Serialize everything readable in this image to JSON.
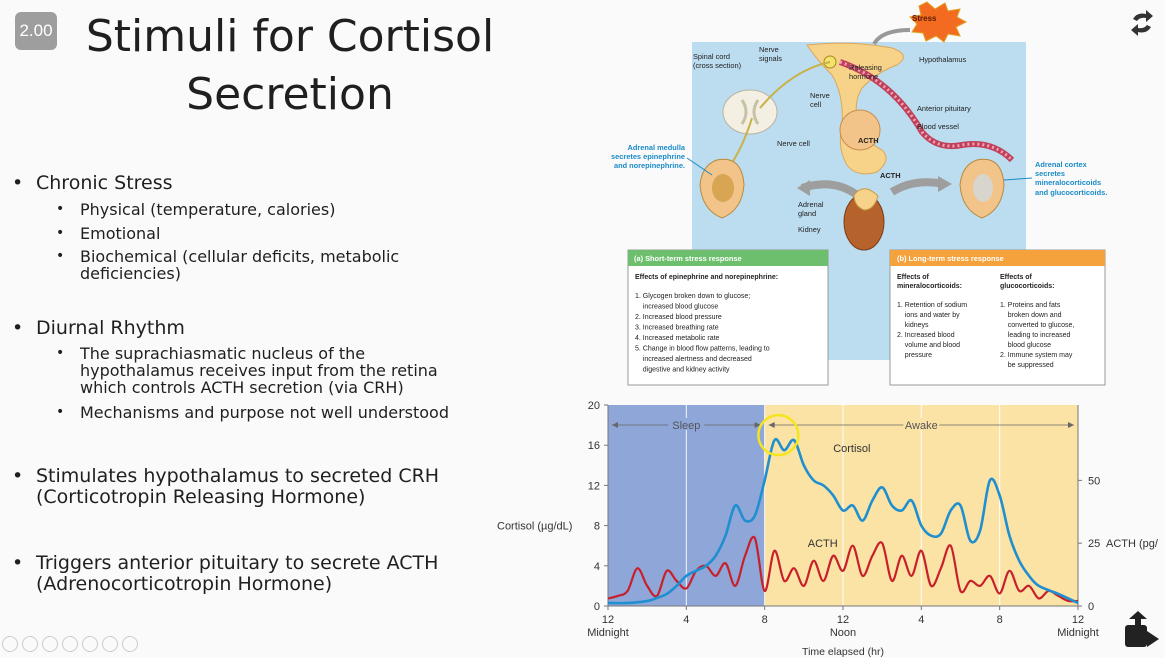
{
  "slide": {
    "speed_badge": "2.00",
    "title_line1": "Stimuli for Cortisol",
    "title_line2": "Secretion",
    "bullets": {
      "chronic": "Chronic Stress",
      "chronic_sub": [
        "Physical (temperature, calories)",
        "Emotional",
        "Biochemical (cellular deficits, metabolic",
        "deficiencies)"
      ],
      "diurnal": "Diurnal Rhythm",
      "diurnal_sub1": [
        "The suprachiasmatic nucleus of the",
        "hypothalamus receives input from the retina",
        "which controls ACTH secretion (via CRH)"
      ],
      "diurnal_sub2": "Mechanisms and purpose not well understood",
      "stim": [
        "Stimulates hypothalamus to secreted CRH",
        "(Corticotropin Releasing Hormone)"
      ],
      "trig": [
        "Triggers anterior pituitary to secrete ACTH",
        "(Adrenocorticotropin Hormone)"
      ]
    }
  },
  "figure": {
    "stress": "Stress",
    "spinal_cord": [
      "Spinal cord",
      "(cross section)"
    ],
    "nerve_signals": [
      "Nerve",
      "signals"
    ],
    "releasing_hormone": [
      "Releasing",
      "hormone"
    ],
    "hypothalamus": "Hypothalamus",
    "nerve_cell_top": [
      "Nerve",
      "cell"
    ],
    "anterior_pituitary": "Anterior pituitary",
    "blood_vessel": "Blood vessel",
    "nerve_cell": "Nerve cell",
    "acth1": "ACTH",
    "acth2": "ACTH",
    "adrenal_medulla": [
      "Adrenal medulla",
      "secretes epinephrine",
      "and norepinephrine."
    ],
    "adrenal_cortex": [
      "Adrenal cortex",
      "secretes",
      "mineralocorticoids",
      "and glucocorticoids."
    ],
    "adrenal_gland": [
      "Adrenal",
      "gland"
    ],
    "kidney": "Kidney",
    "short_term": {
      "header": "(a) Short-term stress response",
      "subtitle": "Effects of epinephrine and norepinephrine:",
      "items": [
        "1. Glycogen broken down to glucose;",
        "    increased blood glucose",
        "2. Increased blood pressure",
        "3. Increased breathing rate",
        "4. Increased metabolic rate",
        "5. Change in blood flow patterns, leading to",
        "    increased alertness and decreased",
        "    digestive and kidney activity"
      ]
    },
    "long_term": {
      "header": "(b) Long-term stress response",
      "col1_title": [
        "Effects of",
        "mineralocorticoids:"
      ],
      "col1_items": [
        "1. Retention of sodium",
        "    ions and water by",
        "    kidneys",
        "2. Increased blood",
        "    volume and blood",
        "    pressure"
      ],
      "col2_title": [
        "Effects of",
        "glucocorticoids:"
      ],
      "col2_items": [
        "1. Proteins and fats",
        "    broken down and",
        "    converted to glucose,",
        "    leading to increased",
        "    blood glucose",
        "2. Immune system may",
        "    be suppressed"
      ]
    }
  },
  "chart_data": {
    "type": "line",
    "x_tick_labels": [
      "12",
      "4",
      "8",
      "12",
      "4",
      "8",
      "12"
    ],
    "x_tick_sub": [
      "Midnight",
      "",
      "",
      "Noon",
      "",
      "",
      "Midnight"
    ],
    "x_ticks_hours": [
      0,
      4,
      8,
      12,
      16,
      20,
      24
    ],
    "xlabel": "Time elapsed (hr)",
    "ylabel": "Cortisol (µg/dL)",
    "y_ticks": [
      0,
      4,
      8,
      12,
      16,
      20
    ],
    "ylim": [
      0,
      20
    ],
    "y2label": "ACTH (pg/",
    "y2_ticks": [
      0,
      25,
      50
    ],
    "y2lim": [
      0,
      80
    ],
    "regions": [
      {
        "name": "Sleep",
        "x": [
          0,
          8
        ],
        "color": "#8fa6d9"
      },
      {
        "name": "Awake",
        "x": [
          8,
          24
        ],
        "color": "#fbe3a6"
      }
    ],
    "series": [
      {
        "name": "Cortisol",
        "color": "#1f8fd0",
        "x": [
          0,
          1,
          2,
          2.5,
          3,
          3.5,
          4,
          4.5,
          5,
          5.5,
          6,
          6.5,
          7,
          7.5,
          8,
          8.5,
          9,
          9.5,
          10,
          10.5,
          11,
          11.5,
          12,
          12.5,
          13,
          13.5,
          14,
          14.5,
          15,
          15.5,
          16,
          16.5,
          17,
          17.5,
          18,
          18.5,
          19,
          19.5,
          20,
          20.5,
          21,
          21.5,
          22,
          23,
          24
        ],
        "y": [
          0.3,
          0.3,
          0.5,
          0.8,
          1.2,
          2,
          3,
          3.5,
          4,
          5,
          7,
          10,
          8.5,
          9,
          12.5,
          16.5,
          15.5,
          16.5,
          14,
          12.5,
          12,
          11,
          9.5,
          10,
          8.5,
          10.5,
          11.8,
          10,
          9.5,
          10.5,
          8,
          7,
          7.2,
          9.5,
          10,
          6.5,
          7.5,
          12.5,
          11,
          7,
          4.5,
          3,
          2,
          1.2,
          0.3
        ]
      },
      {
        "name": "ACTH",
        "color": "#c8202a",
        "x": [
          0,
          0.5,
          1,
          1.5,
          2,
          2.5,
          3,
          3.5,
          4,
          4.5,
          5,
          5.5,
          6,
          6.5,
          7,
          7.5,
          8,
          8.5,
          9,
          9.5,
          10,
          10.5,
          11,
          11.5,
          12,
          12.5,
          13,
          13.5,
          14,
          14.5,
          15,
          15.5,
          16,
          16.5,
          17,
          17.5,
          18,
          18.5,
          19,
          19.5,
          20,
          20.5,
          21,
          21.5,
          22,
          22.5,
          23,
          23.5,
          24
        ],
        "y": [
          3,
          4,
          6,
          15,
          8,
          4,
          14,
          10,
          7,
          14,
          16,
          12,
          17,
          8,
          20,
          27,
          6,
          22,
          10,
          15,
          8,
          18,
          10,
          20,
          14,
          24,
          12,
          20,
          25,
          10,
          20,
          12,
          22,
          8,
          15,
          24,
          6,
          10,
          8,
          12,
          5,
          14,
          6,
          8,
          3,
          6,
          4,
          2,
          2
        ]
      }
    ]
  }
}
